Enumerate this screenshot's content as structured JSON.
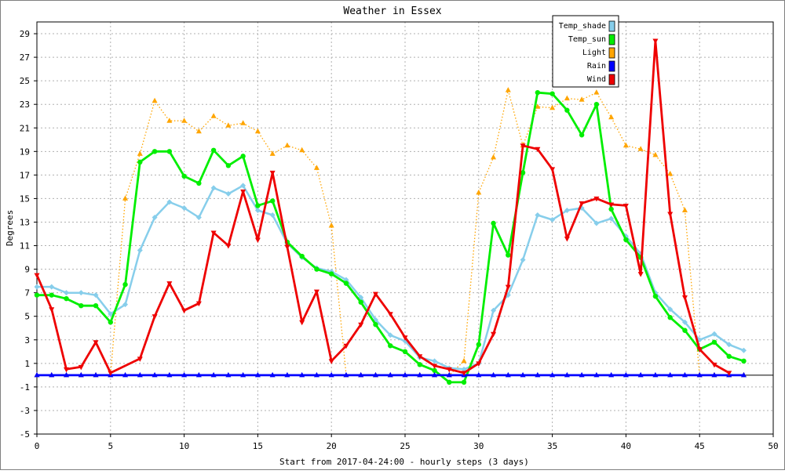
{
  "chart_data": {
    "type": "line",
    "title": "Weather in Essex",
    "xlabel": "Start from 2017-04-24:00 - hourly steps (3 days)",
    "ylabel": "Degrees",
    "xlim": [
      0,
      50
    ],
    "ylim": [
      -5,
      30
    ],
    "xticks": [
      0,
      5,
      10,
      15,
      20,
      25,
      30,
      35,
      40,
      45,
      50
    ],
    "yticks": [
      -5,
      -3,
      -1,
      1,
      3,
      5,
      7,
      9,
      11,
      13,
      15,
      17,
      19,
      21,
      23,
      25,
      27,
      29
    ],
    "grid": true,
    "legend_position": "top-right",
    "series": [
      {
        "name": "Temp_shade",
        "color": "#87ceeb",
        "marker": "diamond",
        "dash": "solid",
        "x": [
          0,
          1,
          2,
          3,
          4,
          5,
          6,
          7,
          8,
          9,
          10,
          11,
          12,
          13,
          14,
          15,
          16,
          17,
          18,
          19,
          20,
          21,
          22,
          23,
          24,
          25,
          26,
          27,
          28,
          29,
          30,
          31,
          32,
          33,
          34,
          35,
          36,
          37,
          38,
          39,
          40,
          41,
          42,
          43,
          44,
          45,
          46,
          47,
          48
        ],
        "y": [
          7.5,
          7.5,
          7.0,
          7.0,
          6.8,
          5.2,
          6.0,
          10.6,
          13.4,
          14.7,
          14.2,
          13.4,
          15.9,
          15.4,
          16.1,
          14.0,
          13.6,
          11.2,
          10.0,
          9.1,
          8.8,
          8.1,
          6.6,
          4.7,
          3.4,
          2.9,
          1.5,
          1.2,
          0.6,
          0.5,
          1.0,
          5.5,
          6.8,
          9.8,
          13.6,
          13.2,
          14.0,
          14.2,
          12.9,
          13.3,
          11.8,
          10.3,
          7.0,
          5.6,
          4.5,
          3.0,
          3.5,
          2.6,
          2.1
        ]
      },
      {
        "name": "Temp_sun",
        "color": "#00ee00",
        "marker": "circle",
        "dash": "solid",
        "x": [
          0,
          1,
          2,
          3,
          4,
          5,
          6,
          7,
          8,
          9,
          10,
          11,
          12,
          13,
          14,
          15,
          16,
          17,
          18,
          19,
          20,
          21,
          22,
          23,
          24,
          25,
          26,
          27,
          28,
          29,
          30,
          31,
          32,
          33,
          34,
          35,
          36,
          37,
          38,
          39,
          40,
          41,
          42,
          43,
          44,
          45,
          46,
          47,
          48
        ],
        "y": [
          6.8,
          6.8,
          6.5,
          5.9,
          5.9,
          4.5,
          7.7,
          18.1,
          19.0,
          19.0,
          16.9,
          16.3,
          19.1,
          17.8,
          18.6,
          14.4,
          14.8,
          11.3,
          10.1,
          9.0,
          8.6,
          7.8,
          6.2,
          4.3,
          2.5,
          2.0,
          0.9,
          0.4,
          -0.6,
          -0.6,
          2.6,
          12.9,
          10.2,
          17.2,
          24.0,
          23.9,
          22.5,
          20.4,
          23.0,
          14.1,
          11.5,
          10.0,
          6.7,
          4.9,
          3.8,
          2.2,
          2.8,
          1.6,
          1.2
        ]
      },
      {
        "name": "Light",
        "color": "#ffa500",
        "marker": "triangle-up",
        "dash": "dotted",
        "x": [
          0,
          1,
          2,
          3,
          4,
          5,
          6,
          7,
          8,
          9,
          10,
          11,
          12,
          13,
          14,
          15,
          16,
          17,
          18,
          19,
          20,
          21,
          22,
          23,
          24,
          25,
          26,
          27,
          28,
          29,
          30,
          31,
          32,
          33,
          34,
          35,
          36,
          37,
          38,
          39,
          40,
          41,
          42,
          43,
          44,
          45,
          46,
          47,
          48
        ],
        "y": [
          0,
          0,
          0,
          0,
          0,
          0,
          15.0,
          18.8,
          23.3,
          21.6,
          21.6,
          20.7,
          22.0,
          21.2,
          21.4,
          20.7,
          18.8,
          19.5,
          19.1,
          17.6,
          12.7,
          0,
          0,
          0,
          0,
          0,
          0,
          0,
          0,
          1.2,
          15.5,
          18.5,
          24.2,
          19.5,
          22.8,
          22.7,
          23.5,
          23.4,
          24.0,
          21.9,
          19.5,
          19.2,
          18.7,
          17.1,
          14.0,
          0,
          0,
          0,
          0
        ]
      },
      {
        "name": "Rain",
        "color": "#0000ff",
        "marker": "triangle-up",
        "dash": "solid",
        "x": [
          0,
          1,
          2,
          3,
          4,
          5,
          6,
          7,
          8,
          9,
          10,
          11,
          12,
          13,
          14,
          15,
          16,
          17,
          18,
          19,
          20,
          21,
          22,
          23,
          24,
          25,
          26,
          27,
          28,
          29,
          30,
          31,
          32,
          33,
          34,
          35,
          36,
          37,
          38,
          39,
          40,
          41,
          42,
          43,
          44,
          45,
          46,
          47,
          48
        ],
        "y": [
          0,
          0,
          0,
          0,
          0,
          0,
          0,
          0,
          0,
          0,
          0,
          0,
          0,
          0,
          0,
          0,
          0,
          0,
          0,
          0,
          0,
          0,
          0,
          0,
          0,
          0,
          0,
          0,
          0,
          0,
          0,
          0,
          0,
          0,
          0,
          0,
          0,
          0,
          0,
          0,
          0,
          0,
          0,
          0,
          0,
          0,
          0,
          0,
          0
        ]
      },
      {
        "name": "Wind",
        "color": "#ee0000",
        "marker": "triangle-down",
        "dash": "solid",
        "x": [
          0,
          1,
          2,
          3,
          4,
          5,
          7,
          8,
          9,
          10,
          11,
          12,
          13,
          14,
          15,
          16,
          17,
          18,
          19,
          20,
          21,
          22,
          23,
          24,
          25,
          26,
          27,
          28,
          29,
          30,
          31,
          32,
          33,
          34,
          35,
          36,
          37,
          38,
          39,
          40,
          41,
          42,
          43,
          44,
          45,
          46,
          47
        ],
        "y": [
          8.5,
          5.6,
          0.5,
          0.7,
          2.8,
          0.2,
          1.4,
          5.0,
          7.8,
          5.5,
          6.1,
          12.1,
          11.0,
          15.6,
          11.5,
          17.2,
          10.9,
          4.5,
          7.1,
          1.2,
          2.5,
          4.3,
          6.9,
          5.2,
          3.2,
          1.6,
          0.8,
          0.5,
          0.2,
          1.0,
          3.5,
          7.5,
          19.5,
          19.2,
          17.5,
          11.6,
          14.6,
          15.0,
          14.5,
          14.4,
          8.6,
          28.4,
          13.7,
          6.6,
          2.2,
          0.9,
          0.2
        ]
      }
    ]
  }
}
